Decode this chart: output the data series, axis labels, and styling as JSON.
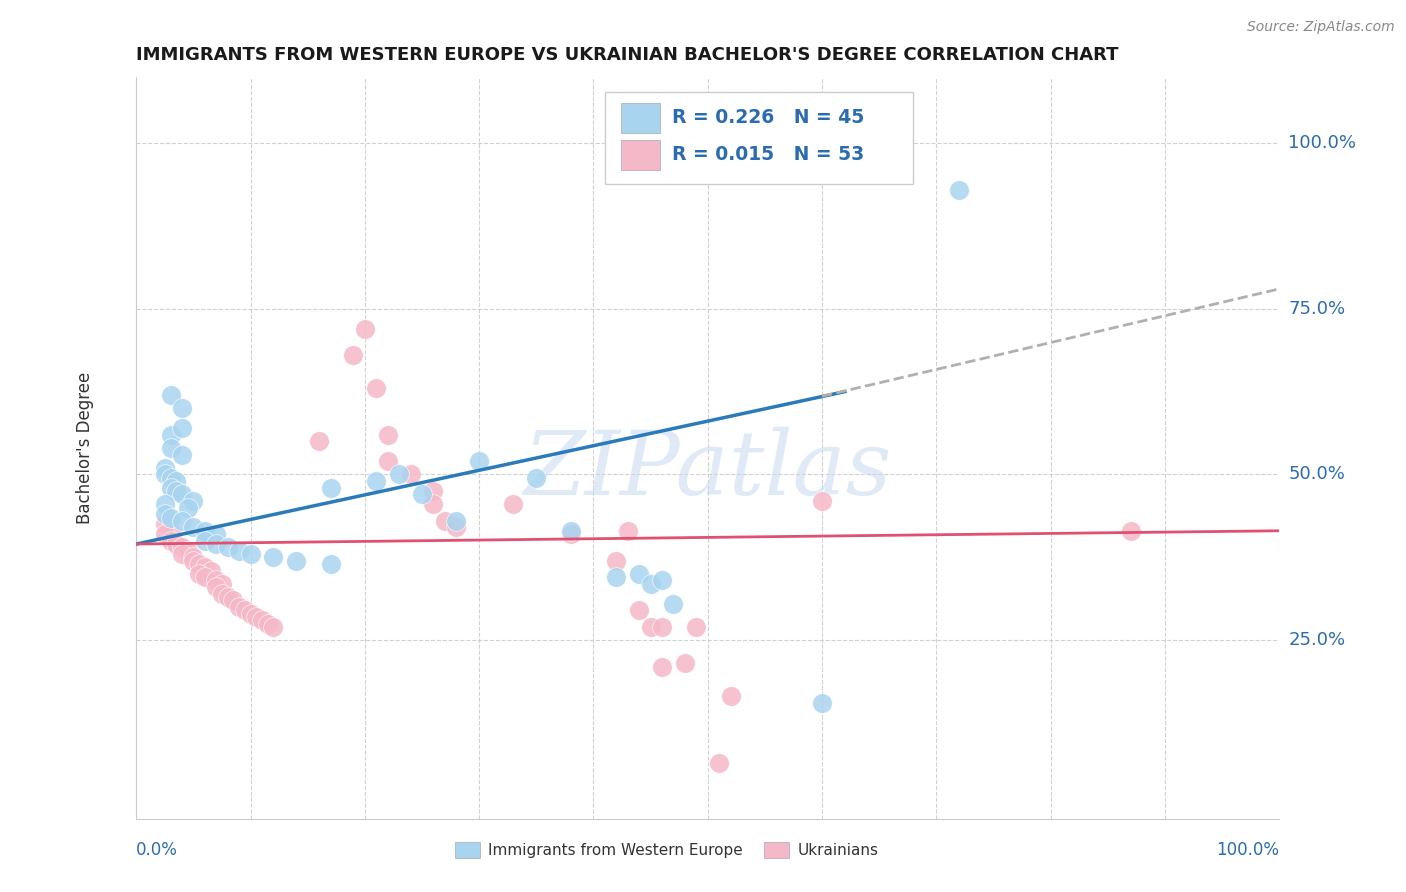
{
  "title": "IMMIGRANTS FROM WESTERN EUROPE VS UKRAINIAN BACHELOR'S DEGREE CORRELATION CHART",
  "source": "Source: ZipAtlas.com",
  "ylabel": "Bachelor's Degree",
  "ytick_labels": [
    "100.0%",
    "75.0%",
    "50.0%",
    "25.0%"
  ],
  "ytick_positions": [
    1.0,
    0.75,
    0.5,
    0.25
  ],
  "xlim": [
    0.0,
    1.0
  ],
  "ylim": [
    -0.02,
    1.1
  ],
  "blue_color": "#a8d4f0",
  "pink_color": "#f5b8c8",
  "blue_line_color": "#2B7BBA",
  "pink_line_color": "#E05070",
  "dash_color": "#b0b0b0",
  "blue_scatter": [
    [
      0.03,
      0.62
    ],
    [
      0.04,
      0.6
    ],
    [
      0.03,
      0.56
    ],
    [
      0.04,
      0.57
    ],
    [
      0.03,
      0.54
    ],
    [
      0.04,
      0.53
    ],
    [
      0.025,
      0.51
    ],
    [
      0.025,
      0.5
    ],
    [
      0.03,
      0.495
    ],
    [
      0.035,
      0.49
    ],
    [
      0.03,
      0.48
    ],
    [
      0.035,
      0.475
    ],
    [
      0.04,
      0.47
    ],
    [
      0.05,
      0.46
    ],
    [
      0.025,
      0.455
    ],
    [
      0.045,
      0.45
    ],
    [
      0.025,
      0.44
    ],
    [
      0.03,
      0.435
    ],
    [
      0.04,
      0.43
    ],
    [
      0.05,
      0.42
    ],
    [
      0.06,
      0.415
    ],
    [
      0.07,
      0.41
    ],
    [
      0.06,
      0.4
    ],
    [
      0.07,
      0.395
    ],
    [
      0.08,
      0.39
    ],
    [
      0.09,
      0.385
    ],
    [
      0.1,
      0.38
    ],
    [
      0.12,
      0.375
    ],
    [
      0.14,
      0.37
    ],
    [
      0.17,
      0.365
    ],
    [
      0.17,
      0.48
    ],
    [
      0.21,
      0.49
    ],
    [
      0.23,
      0.5
    ],
    [
      0.25,
      0.47
    ],
    [
      0.28,
      0.43
    ],
    [
      0.3,
      0.52
    ],
    [
      0.35,
      0.495
    ],
    [
      0.38,
      0.415
    ],
    [
      0.42,
      0.345
    ],
    [
      0.44,
      0.35
    ],
    [
      0.45,
      0.335
    ],
    [
      0.46,
      0.34
    ],
    [
      0.47,
      0.305
    ],
    [
      0.6,
      0.155
    ],
    [
      0.72,
      0.93
    ]
  ],
  "pink_scatter": [
    [
      0.025,
      0.425
    ],
    [
      0.03,
      0.415
    ],
    [
      0.025,
      0.41
    ],
    [
      0.03,
      0.4
    ],
    [
      0.035,
      0.395
    ],
    [
      0.04,
      0.39
    ],
    [
      0.045,
      0.385
    ],
    [
      0.04,
      0.38
    ],
    [
      0.05,
      0.375
    ],
    [
      0.05,
      0.37
    ],
    [
      0.055,
      0.365
    ],
    [
      0.06,
      0.36
    ],
    [
      0.065,
      0.355
    ],
    [
      0.055,
      0.35
    ],
    [
      0.06,
      0.345
    ],
    [
      0.07,
      0.34
    ],
    [
      0.075,
      0.335
    ],
    [
      0.07,
      0.33
    ],
    [
      0.075,
      0.32
    ],
    [
      0.08,
      0.315
    ],
    [
      0.085,
      0.31
    ],
    [
      0.09,
      0.3
    ],
    [
      0.095,
      0.295
    ],
    [
      0.1,
      0.29
    ],
    [
      0.105,
      0.285
    ],
    [
      0.11,
      0.28
    ],
    [
      0.115,
      0.275
    ],
    [
      0.12,
      0.27
    ],
    [
      0.16,
      0.55
    ],
    [
      0.19,
      0.68
    ],
    [
      0.2,
      0.72
    ],
    [
      0.21,
      0.63
    ],
    [
      0.22,
      0.56
    ],
    [
      0.22,
      0.52
    ],
    [
      0.24,
      0.5
    ],
    [
      0.26,
      0.475
    ],
    [
      0.26,
      0.455
    ],
    [
      0.27,
      0.43
    ],
    [
      0.28,
      0.42
    ],
    [
      0.33,
      0.455
    ],
    [
      0.38,
      0.41
    ],
    [
      0.42,
      0.37
    ],
    [
      0.43,
      0.415
    ],
    [
      0.44,
      0.295
    ],
    [
      0.45,
      0.27
    ],
    [
      0.46,
      0.27
    ],
    [
      0.46,
      0.21
    ],
    [
      0.48,
      0.215
    ],
    [
      0.49,
      0.27
    ],
    [
      0.51,
      0.065
    ],
    [
      0.52,
      0.165
    ],
    [
      0.6,
      0.46
    ],
    [
      0.87,
      0.415
    ]
  ],
  "blue_line_x": [
    0.0,
    0.62
  ],
  "blue_line_y": [
    0.395,
    0.625
  ],
  "dash_line_x": [
    0.6,
    1.0
  ],
  "dash_line_y": [
    0.618,
    0.78
  ],
  "pink_line_x": [
    0.0,
    1.0
  ],
  "pink_line_y": [
    0.395,
    0.415
  ],
  "watermark": "ZIPatlas",
  "title_color": "#1a1a1a",
  "axis_label_color": "#2B6CB0",
  "grid_color": "#cccccc",
  "axis_label_color_dark": "#555555"
}
